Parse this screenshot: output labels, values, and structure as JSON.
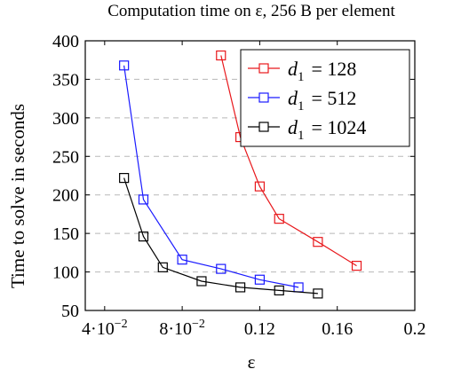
{
  "chart_data": {
    "type": "line",
    "title": "Computation time on ε, 256 B per element",
    "xlabel": "ε",
    "ylabel": "Time to solve in seconds",
    "xlim": [
      0.03,
      0.2
    ],
    "ylim": [
      50,
      400
    ],
    "x_ticks": [
      {
        "value": 0.04,
        "label": "4·10"
      },
      {
        "value": 0.08,
        "label": "8·10"
      },
      {
        "value": 0.12,
        "label": "0.12"
      },
      {
        "value": 0.16,
        "label": "0.16"
      },
      {
        "value": 0.2,
        "label": "0.2"
      }
    ],
    "x_tick_exponent": "−2",
    "y_ticks": [
      50,
      100,
      150,
      200,
      250,
      300,
      350,
      400
    ],
    "grid": "horizontal dashed",
    "legend_position": "top-right",
    "marker": "open square",
    "series": [
      {
        "name": "d1 = 128",
        "legend_sub": "1",
        "legend_value": "= 128",
        "color": "#e8181c",
        "x": [
          0.1,
          0.11,
          0.12,
          0.13,
          0.15,
          0.17
        ],
        "y": [
          381,
          275,
          211,
          169,
          139,
          108
        ]
      },
      {
        "name": "d1 = 512",
        "legend_sub": "1",
        "legend_value": "= 512",
        "color": "#1a1aff",
        "x": [
          0.05,
          0.06,
          0.08,
          0.1,
          0.12,
          0.14
        ],
        "y": [
          368,
          194,
          116,
          104,
          90,
          80
        ]
      },
      {
        "name": "d1 = 1024",
        "legend_sub": "1",
        "legend_value": "= 1024",
        "color": "#000000",
        "x": [
          0.05,
          0.06,
          0.07,
          0.09,
          0.11,
          0.13,
          0.15
        ],
        "y": [
          222,
          146,
          106,
          88,
          80,
          76,
          72
        ]
      }
    ]
  }
}
